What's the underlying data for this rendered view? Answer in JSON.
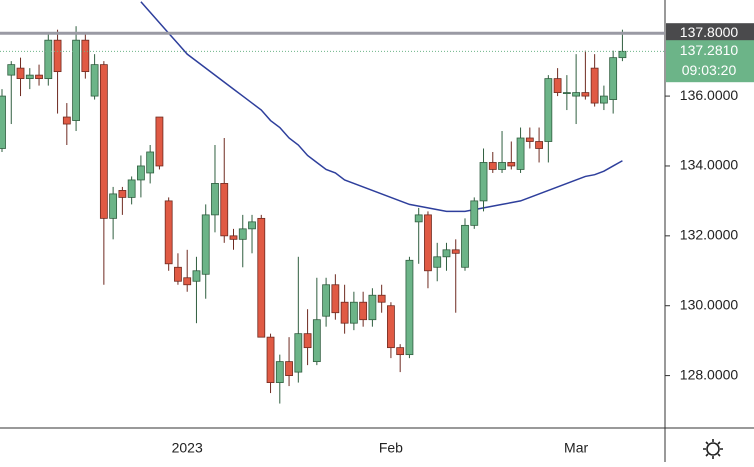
{
  "chart_data": {
    "type": "candlestick",
    "categories": [
      null,
      null,
      null,
      null,
      null,
      null,
      null,
      null,
      null,
      null,
      null,
      null,
      null,
      null,
      null,
      null,
      null,
      null,
      null,
      null,
      "2023",
      null,
      null,
      null,
      null,
      null,
      null,
      null,
      null,
      null,
      null,
      null,
      null,
      null,
      null,
      null,
      null,
      null,
      null,
      null,
      null,
      null,
      "Feb",
      null,
      null,
      null,
      null,
      null,
      null,
      null,
      null,
      null,
      null,
      null,
      null,
      null,
      null,
      null,
      null,
      null,
      null,
      null,
      "Mar",
      null,
      null,
      null,
      null,
      null
    ],
    "open": [
      134.5,
      136.6,
      136.8,
      136.5,
      136.6,
      136.5,
      137.6,
      135.4,
      135.3,
      137.6,
      136.0,
      136.9,
      132.5,
      133.3,
      133.1,
      133.6,
      133.8,
      135.4,
      133.0,
      131.1,
      130.8,
      130.7,
      130.9,
      132.6,
      133.5,
      132.0,
      131.9,
      132.2,
      132.5,
      129.1,
      127.8,
      128.4,
      128.1,
      129.2,
      128.4,
      129.7,
      130.6,
      130.1,
      129.5,
      130.1,
      129.6,
      130.3,
      130.0,
      128.8,
      128.6,
      132.4,
      132.6,
      131.1,
      131.4,
      131.6,
      131.1,
      132.3,
      133.0,
      134.1,
      133.9,
      134.1,
      133.9,
      134.8,
      134.7,
      134.7,
      136.5,
      136.1,
      136.0,
      136.1,
      136.8,
      135.8,
      135.9,
      137.1
    ],
    "high": [
      136.2,
      137.0,
      137.1,
      136.8,
      136.9,
      137.8,
      137.9,
      135.8,
      138.0,
      137.8,
      137.2,
      137.0,
      133.4,
      133.4,
      133.7,
      134.3,
      134.6,
      135.4,
      133.1,
      131.5,
      131.6,
      131.4,
      132.9,
      134.6,
      134.8,
      132.2,
      132.6,
      132.6,
      132.6,
      129.2,
      128.6,
      129.1,
      131.4,
      129.9,
      130.8,
      130.8,
      130.9,
      130.6,
      130.4,
      130.4,
      130.5,
      130.6,
      130.1,
      128.9,
      131.4,
      132.8,
      132.7,
      131.8,
      131.8,
      131.9,
      132.5,
      133.1,
      134.5,
      134.4,
      135.0,
      134.7,
      135.1,
      135.1,
      135.1,
      136.6,
      136.8,
      136.6,
      137.2,
      137.3,
      137.2,
      136.3,
      137.3,
      137.9
    ],
    "low": [
      134.4,
      135.2,
      136.0,
      136.2,
      136.3,
      136.3,
      135.5,
      134.6,
      135.0,
      136.5,
      135.9,
      130.6,
      131.9,
      132.6,
      132.9,
      133.1,
      133.5,
      133.9,
      131.0,
      130.6,
      130.4,
      129.5,
      130.2,
      132.1,
      131.8,
      131.6,
      131.1,
      131.5,
      129.1,
      127.5,
      127.2,
      127.7,
      127.8,
      128.3,
      128.3,
      129.4,
      129.6,
      129.2,
      129.3,
      129.4,
      129.4,
      129.8,
      128.5,
      128.1,
      128.5,
      131.2,
      130.5,
      130.7,
      131.0,
      129.8,
      131.0,
      132.2,
      132.7,
      133.8,
      133.8,
      133.9,
      133.8,
      134.5,
      134.1,
      134.1,
      136.0,
      135.6,
      135.2,
      135.9,
      135.7,
      135.6,
      135.5,
      137.0
    ],
    "close": [
      136.0,
      136.9,
      136.5,
      136.6,
      136.5,
      137.6,
      136.7,
      135.2,
      137.6,
      136.7,
      136.9,
      132.5,
      133.2,
      133.1,
      133.6,
      134.0,
      134.4,
      134.0,
      131.2,
      130.7,
      130.6,
      131.0,
      132.6,
      133.5,
      132.0,
      131.9,
      132.2,
      132.4,
      129.1,
      127.8,
      128.4,
      128.0,
      129.2,
      128.8,
      129.6,
      130.6,
      129.8,
      129.5,
      130.1,
      129.6,
      130.3,
      130.1,
      128.8,
      128.6,
      131.3,
      132.6,
      131.0,
      131.4,
      131.6,
      131.5,
      132.3,
      133.0,
      134.1,
      133.9,
      134.1,
      134.0,
      134.8,
      134.7,
      134.5,
      136.5,
      136.1,
      136.1,
      136.1,
      136.0,
      135.8,
      136.0,
      137.1,
      137.281
    ],
    "up_color": "#6cb488",
    "down_color": "#e05a44",
    "ma": {
      "color": "#2e3f9c",
      "values": [
        null,
        null,
        null,
        null,
        null,
        null,
        null,
        null,
        null,
        null,
        null,
        null,
        null,
        null,
        null,
        138.7,
        138.4,
        138.1,
        137.8,
        137.5,
        137.2,
        137.0,
        136.8,
        136.6,
        136.4,
        136.2,
        136.0,
        135.8,
        135.6,
        135.3,
        135.1,
        134.8,
        134.6,
        134.3,
        134.1,
        133.9,
        133.8,
        133.6,
        133.5,
        133.4,
        133.3,
        133.2,
        133.1,
        133.0,
        132.9,
        132.85,
        132.8,
        132.75,
        132.7,
        132.7,
        132.7,
        132.75,
        132.8,
        132.85,
        132.9,
        132.95,
        133.0,
        133.1,
        133.2,
        133.3,
        133.4,
        133.5,
        133.6,
        133.7,
        133.75,
        133.85,
        134.0,
        134.15
      ]
    },
    "ylim": [
      126.5,
      138.75
    ],
    "yticks": [
      {
        "value": 128,
        "label": "128.0000"
      },
      {
        "value": 130,
        "label": "130.0000"
      },
      {
        "value": 132,
        "label": "132.0000"
      },
      {
        "value": 134,
        "label": "134.0000"
      },
      {
        "value": 136,
        "label": "136.0000"
      }
    ],
    "price_line": {
      "value": 137.8,
      "label": "137.8000",
      "color": "#9a9aa4"
    },
    "last_price": {
      "value": 137.281,
      "label": "137.2810",
      "countdown": "09:03:20",
      "color": "#6cb488"
    },
    "grid": false
  }
}
